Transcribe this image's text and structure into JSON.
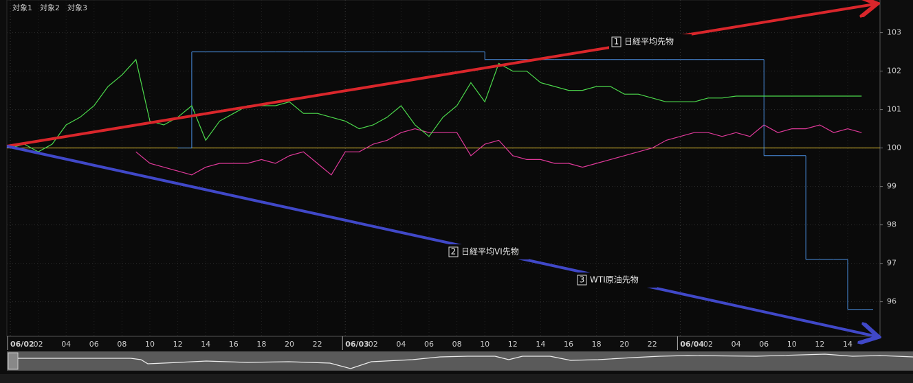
{
  "chart_data": {
    "type": "line",
    "legend": [
      "対象1",
      "対象2",
      "対象3"
    ],
    "categories": [
      "06/02",
      null,
      "02",
      null,
      "04",
      null,
      "06",
      null,
      "08",
      null,
      "10",
      null,
      "12",
      null,
      "14",
      null,
      "16",
      null,
      "18",
      null,
      "20",
      null,
      "22",
      null,
      "06/03",
      null,
      "02",
      null,
      "04",
      null,
      "06",
      null,
      "08",
      null,
      "10",
      null,
      "12",
      null,
      "14",
      null,
      "16",
      null,
      "18",
      null,
      "20",
      null,
      "22",
      null,
      "06/04",
      null,
      "02",
      null,
      "04",
      null,
      "06",
      null,
      "10",
      null,
      "12",
      null,
      "14",
      null
    ],
    "series": [
      {
        "name": "対象1",
        "color": "#e0399a",
        "values": [
          null,
          null,
          null,
          null,
          null,
          null,
          null,
          null,
          null,
          99.9,
          99.6,
          99.5,
          99.4,
          99.3,
          99.5,
          99.6,
          99.6,
          99.6,
          99.7,
          99.6,
          99.8,
          99.9,
          99.6,
          99.3,
          99.9,
          99.9,
          100.1,
          100.2,
          100.4,
          100.5,
          100.4,
          100.4,
          100.4,
          99.8,
          100.1,
          100.2,
          99.8,
          99.7,
          99.7,
          99.6,
          99.6,
          99.5,
          99.6,
          99.7,
          99.8,
          99.9,
          100.0,
          100.2,
          100.3,
          100.4,
          100.4,
          100.3,
          100.4,
          100.3,
          100.6,
          100.4,
          100.5,
          100.5,
          100.6,
          100.4,
          100.5,
          100.4
        ]
      },
      {
        "name": "対象2",
        "color": "#4a90e2",
        "step": true,
        "values": [
          null,
          null,
          null,
          null,
          null,
          null,
          null,
          null,
          null,
          null,
          null,
          null,
          100.0,
          102.5,
          102.5,
          102.5,
          102.5,
          102.5,
          102.5,
          102.5,
          102.5,
          102.5,
          102.5,
          102.5,
          102.5,
          102.5,
          102.5,
          102.5,
          102.5,
          102.5,
          102.5,
          102.5,
          102.5,
          102.5,
          102.3,
          102.3,
          102.3,
          102.3,
          102.3,
          102.3,
          102.3,
          102.3,
          102.3,
          102.3,
          102.3,
          102.3,
          102.3,
          102.3,
          102.3,
          102.3,
          102.3,
          102.3,
          102.3,
          102.3,
          99.8,
          99.8,
          99.8,
          97.1,
          97.1,
          97.1,
          95.8,
          95.8
        ]
      },
      {
        "name": "対象3",
        "color": "#4cd94c",
        "values": [
          100.0,
          100.1,
          99.9,
          100.1,
          100.6,
          100.8,
          101.1,
          101.6,
          101.9,
          102.3,
          100.7,
          100.6,
          100.8,
          101.1,
          100.2,
          100.7,
          100.9,
          101.1,
          101.1,
          101.1,
          101.2,
          100.9,
          100.9,
          100.8,
          100.7,
          100.5,
          100.6,
          100.8,
          101.1,
          100.6,
          100.3,
          100.8,
          101.1,
          101.7,
          101.2,
          102.2,
          102.0,
          102.0,
          101.7,
          101.6,
          101.5,
          101.5,
          101.6,
          101.6,
          101.4,
          101.4,
          101.3,
          101.2,
          101.2,
          101.2,
          101.3,
          101.3,
          101.35,
          101.35,
          101.35,
          101.35,
          101.35,
          101.35,
          101.35,
          101.35,
          101.35,
          101.35
        ]
      }
    ],
    "baseline": 100,
    "baseline_color": "#e0c030",
    "ylim": [
      95.1,
      103.85
    ],
    "yticks": [
      96,
      97,
      98,
      99,
      100,
      101,
      102,
      103
    ],
    "grid": true,
    "annotations": [
      {
        "number": 1,
        "text": "日経平均先物"
      },
      {
        "number": 2,
        "text": "日経平均VI先物"
      },
      {
        "number": 3,
        "text": "WTI原油先物"
      }
    ]
  }
}
